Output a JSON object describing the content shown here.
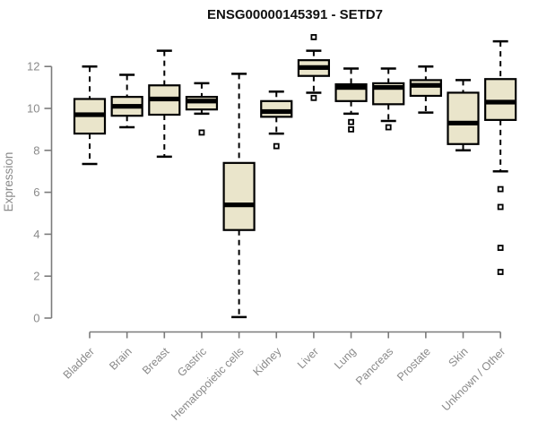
{
  "header": {
    "title": "ENSG00000145391 - SETD7"
  },
  "colors": {
    "background": "#ffffff",
    "box_fill": "#eae5cb",
    "box_border": "#000000",
    "median_color": "#000000",
    "whisker_color": "#000000",
    "outlier_stroke": "#000000",
    "outlier_fill": "#ffffff",
    "axis_line": "#7b7b7b",
    "tick_label": "#8a8a8a"
  },
  "chart_data": {
    "type": "boxplot",
    "title": "ENSG00000145391 - SETD7",
    "xlabel": "",
    "ylabel": "Expression",
    "ylim": [
      0,
      13.6
    ],
    "yticks": [
      0,
      2,
      4,
      6,
      8,
      10,
      12
    ],
    "grid": false,
    "legend": "none",
    "x_tick_label_rotation": 45,
    "categories": [
      "Bladder",
      "Brain",
      "Breast",
      "Gastric",
      "Hematopoietic cells",
      "Kidney",
      "Liver",
      "Lung",
      "Pancreas",
      "Prostate",
      "Skin",
      "Unknown / Other"
    ],
    "boxes": [
      {
        "category": "Bladder",
        "low": 7.35,
        "q1": 8.8,
        "median": 9.7,
        "q3": 10.45,
        "high": 12.0,
        "outliers": []
      },
      {
        "category": "Brain",
        "low": 9.1,
        "q1": 9.65,
        "median": 10.1,
        "q3": 10.55,
        "high": 11.6,
        "outliers": []
      },
      {
        "category": "Breast",
        "low": 7.7,
        "q1": 9.7,
        "median": 10.45,
        "q3": 11.1,
        "high": 12.75,
        "outliers": []
      },
      {
        "category": "Gastric",
        "low": 9.75,
        "q1": 9.95,
        "median": 10.35,
        "q3": 10.55,
        "high": 11.2,
        "outliers": [
          8.85
        ]
      },
      {
        "category": "Hematopoietic cells",
        "low": 0.05,
        "q1": 4.2,
        "median": 5.4,
        "q3": 7.4,
        "high": 11.65,
        "outliers": []
      },
      {
        "category": "Kidney",
        "low": 8.8,
        "q1": 9.6,
        "median": 9.85,
        "q3": 10.35,
        "high": 10.8,
        "outliers": [
          8.2
        ]
      },
      {
        "category": "Liver",
        "low": 10.75,
        "q1": 11.55,
        "median": 11.95,
        "q3": 12.3,
        "high": 12.75,
        "outliers": [
          13.4,
          10.5
        ]
      },
      {
        "category": "Lung",
        "low": 9.75,
        "q1": 10.35,
        "median": 11.0,
        "q3": 11.15,
        "high": 11.9,
        "outliers": [
          9.35,
          9.0
        ]
      },
      {
        "category": "Pancreas",
        "low": 9.4,
        "q1": 10.2,
        "median": 11.0,
        "q3": 11.2,
        "high": 11.9,
        "outliers": [
          9.1
        ]
      },
      {
        "category": "Prostate",
        "low": 9.8,
        "q1": 10.6,
        "median": 11.1,
        "q3": 11.35,
        "high": 12.0,
        "outliers": []
      },
      {
        "category": "Skin",
        "low": 8.0,
        "q1": 8.3,
        "median": 9.3,
        "q3": 10.75,
        "high": 11.35,
        "outliers": []
      },
      {
        "category": "Unknown / Other",
        "low": 7.0,
        "q1": 9.45,
        "median": 10.3,
        "q3": 11.4,
        "high": 13.2,
        "outliers": [
          6.15,
          5.3,
          3.35,
          2.2
        ]
      }
    ]
  }
}
